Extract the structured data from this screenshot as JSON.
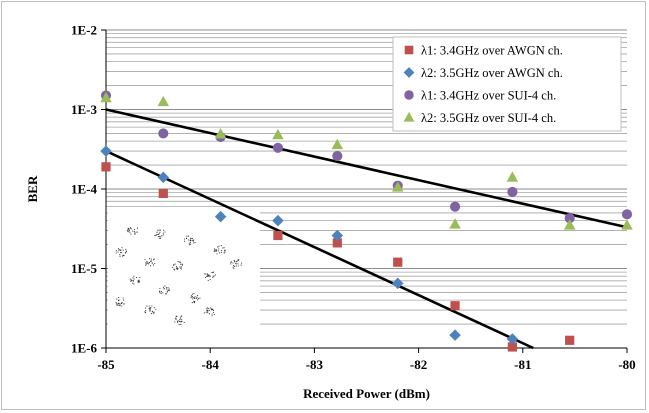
{
  "chart_data": {
    "type": "scatter",
    "title": "",
    "xlabel": "Received Power (dBm)",
    "ylabel": "BER",
    "x_ticks": [
      -85,
      -84,
      -83,
      -82,
      -81,
      -80
    ],
    "x_tick_labels": [
      "-85",
      "-84",
      "-83",
      "-82",
      "-81",
      "-80"
    ],
    "y_ticks": [
      1e-06,
      1e-05,
      0.0001,
      0.001,
      0.01
    ],
    "y_tick_labels": [
      "1E-6",
      "1E-5",
      "1E-4",
      "1E-3",
      "1E-2"
    ],
    "xlim": [
      -85,
      -80
    ],
    "ylim": [
      1e-06,
      0.01
    ],
    "y_scale": "log",
    "grid": "horizontal minor and major lines on y",
    "legend_position": "top-right",
    "inset": "constellation diagram (16 point clusters) in lower-left",
    "series": [
      {
        "name": "λ1: 3.4GHz over AWGN ch.",
        "marker": "square",
        "color": "#c0504d",
        "points": [
          [
            -85.0,
            0.00019
          ],
          [
            -84.45,
            8.8e-05
          ],
          [
            -83.35,
            2.6e-05
          ],
          [
            -82.78,
            2.1e-05
          ],
          [
            -82.2,
            1.2e-05
          ],
          [
            -81.65,
            3.4e-06
          ],
          [
            -81.1,
            1.03e-06
          ],
          [
            -80.55,
            1.25e-06
          ]
        ]
      },
      {
        "name": "λ2: 3.5GHz over AWGN ch.",
        "marker": "diamond",
        "color": "#4f81bd",
        "points": [
          [
            -85.0,
            0.0003
          ],
          [
            -84.45,
            0.00014
          ],
          [
            -83.9,
            4.5e-05
          ],
          [
            -83.35,
            4e-05
          ],
          [
            -82.78,
            2.6e-05
          ],
          [
            -82.2,
            6.5e-06
          ],
          [
            -81.65,
            1.45e-06
          ],
          [
            -81.1,
            1.3e-06
          ]
        ]
      },
      {
        "name": "λ1: 3.4GHz over SUI-4 ch.",
        "marker": "circle",
        "color": "#8064a2",
        "points": [
          [
            -85.0,
            0.0015
          ],
          [
            -84.45,
            0.0005
          ],
          [
            -83.9,
            0.00045
          ],
          [
            -83.35,
            0.00033
          ],
          [
            -82.78,
            0.00026
          ],
          [
            -82.2,
            0.00011
          ],
          [
            -81.65,
            6e-05
          ],
          [
            -81.1,
            9.2e-05
          ],
          [
            -80.55,
            4.3e-05
          ],
          [
            -80.0,
            4.8e-05
          ]
        ]
      },
      {
        "name": "λ2: 3.5GHz over SUI-4 ch.",
        "marker": "triangle",
        "color": "#9bbb59",
        "points": [
          [
            -85.0,
            0.0014
          ],
          [
            -84.45,
            0.00125
          ],
          [
            -83.9,
            0.00049
          ],
          [
            -83.35,
            0.00048
          ],
          [
            -82.78,
            0.00036
          ],
          [
            -82.2,
            0.000105
          ],
          [
            -81.65,
            3.6e-05
          ],
          [
            -81.1,
            0.00014
          ],
          [
            -80.55,
            3.5e-05
          ],
          [
            -80.0,
            3.5e-05
          ]
        ]
      }
    ],
    "trend_lines": [
      {
        "from": [
          -85.0,
          0.001
        ],
        "to": [
          -80.0,
          3.3e-05
        ],
        "color": "#000000"
      },
      {
        "from": [
          -85.0,
          0.0003
        ],
        "to": [
          -80.9,
          1e-06
        ],
        "color": "#000000"
      }
    ]
  }
}
